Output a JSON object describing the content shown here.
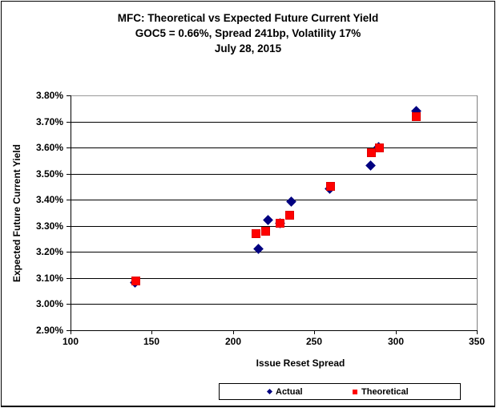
{
  "title": {
    "line1": "MFC: Theoretical vs Expected Future Current Yield",
    "line2": "GOC5 = 0.66%, Spread 241bp, Volatility 17%",
    "line3": "July 28, 2015"
  },
  "chart_data": {
    "type": "scatter",
    "xlabel": "Issue Reset Spread",
    "ylabel": "Expected Future Current Yield",
    "xlim": [
      100,
      350
    ],
    "ylim": [
      2.9,
      3.8
    ],
    "grid": "horizontal",
    "legend_position": "bottom",
    "xticks": [
      {
        "value": 100,
        "label": "100"
      },
      {
        "value": 150,
        "label": "150"
      },
      {
        "value": 200,
        "label": "200"
      },
      {
        "value": 250,
        "label": "250"
      },
      {
        "value": 300,
        "label": "300"
      },
      {
        "value": 350,
        "label": "350"
      }
    ],
    "yticks": [
      {
        "value": 3.8,
        "label": "3.80%"
      },
      {
        "value": 3.7,
        "label": "3.70%"
      },
      {
        "value": 3.6,
        "label": "3.60%"
      },
      {
        "value": 3.5,
        "label": "3.50%"
      },
      {
        "value": 3.4,
        "label": "3.40%"
      },
      {
        "value": 3.3,
        "label": "3.30%"
      },
      {
        "value": 3.2,
        "label": "3.20%"
      },
      {
        "value": 3.1,
        "label": "3.10%"
      },
      {
        "value": 3.0,
        "label": "3.00%"
      },
      {
        "value": 2.9,
        "label": "2.90%"
      }
    ],
    "series": [
      {
        "name": "Actual",
        "marker": "diamond",
        "color": "#000080",
        "points": [
          [
            140,
            3.08
          ],
          [
            216,
            3.21
          ],
          [
            222,
            3.32
          ],
          [
            229,
            3.31
          ],
          [
            236,
            3.39
          ],
          [
            260,
            3.44
          ],
          [
            285,
            3.53
          ],
          [
            290,
            3.6
          ],
          [
            313,
            3.74
          ]
        ]
      },
      {
        "name": "Theoretical",
        "marker": "square",
        "color": "#FF0000",
        "points": [
          [
            140,
            3.09
          ],
          [
            214,
            3.27
          ],
          [
            220,
            3.28
          ],
          [
            229,
            3.31
          ],
          [
            235,
            3.34
          ],
          [
            260,
            3.45
          ],
          [
            285,
            3.58
          ],
          [
            290,
            3.6
          ],
          [
            313,
            3.72
          ]
        ]
      }
    ]
  }
}
